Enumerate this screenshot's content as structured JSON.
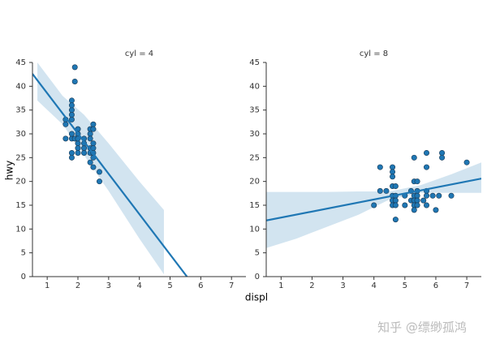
{
  "chart_data": [
    {
      "type": "scatter",
      "title": "cyl = 4",
      "color": "#1f77b4",
      "x": [
        1.6,
        1.6,
        1.6,
        1.8,
        1.8,
        1.8,
        1.8,
        1.8,
        1.8,
        1.8,
        1.8,
        1.8,
        1.9,
        1.9,
        1.9,
        2.0,
        2.0,
        2.0,
        2.0,
        2.0,
        2.0,
        2.2,
        2.2,
        2.2,
        2.2,
        2.4,
        2.4,
        2.4,
        2.4,
        2.4,
        2.4,
        2.5,
        2.5,
        2.5,
        2.5,
        2.5,
        2.5,
        2.5,
        2.7,
        2.7
      ],
      "y": [
        33,
        32,
        29,
        37,
        35,
        36,
        34,
        33,
        29,
        26,
        25,
        30,
        44,
        41,
        29,
        31,
        30,
        28,
        27,
        26,
        29,
        27,
        26,
        29,
        28,
        27,
        31,
        30,
        29,
        26,
        24,
        32,
        31,
        28,
        27,
        26,
        25,
        23,
        22,
        20
      ],
      "fit": {
        "x": [
          0.52,
          5.55
        ],
        "y": [
          42.6,
          0
        ]
      },
      "band": {
        "x": [
          0.68,
          1.5,
          2.2,
          3,
          4,
          4.8
        ],
        "lower": [
          37,
          32,
          25.5,
          18,
          8,
          0.5
        ],
        "upper": [
          45,
          38,
          34,
          28,
          20,
          14
        ]
      },
      "xlim": [
        0.52,
        7.47
      ],
      "ylim": [
        0,
        45
      ],
      "xticks": [
        1,
        2,
        3,
        4,
        5,
        6,
        7
      ],
      "yticks": [
        0,
        5,
        10,
        15,
        20,
        25,
        30,
        35,
        40,
        45
      ]
    },
    {
      "type": "scatter",
      "title": "cyl = 8",
      "color": "#1f77b4",
      "x": [
        4.0,
        4.2,
        4.2,
        4.4,
        4.6,
        4.6,
        4.6,
        4.6,
        4.6,
        4.6,
        4.6,
        4.7,
        4.7,
        4.7,
        4.7,
        4.7,
        5.0,
        5.0,
        5.2,
        5.2,
        5.3,
        5.3,
        5.3,
        5.3,
        5.3,
        5.3,
        5.4,
        5.4,
        5.4,
        5.4,
        5.4,
        5.6,
        5.7,
        5.7,
        5.7,
        5.7,
        5.7,
        5.9,
        6.0,
        6.1,
        6.2,
        6.2,
        6.5,
        7.0
      ],
      "y": [
        15,
        18,
        23,
        18,
        23,
        22,
        21,
        19,
        17,
        16,
        15,
        19,
        17,
        16,
        15,
        12,
        17,
        15,
        18,
        16,
        25,
        20,
        17,
        16,
        15,
        14,
        20,
        18,
        17,
        16,
        15,
        16,
        26,
        23,
        18,
        17,
        15,
        17,
        14,
        17,
        26,
        25,
        17,
        24
      ],
      "fit": {
        "x": [
          0.52,
          7.47
        ],
        "y": [
          11.8,
          20.6
        ]
      },
      "band": {
        "x": [
          0.52,
          1.5,
          2.5,
          3.5,
          4.5,
          5.5,
          6.5,
          7.47
        ],
        "lower": [
          6,
          8,
          10.5,
          13,
          16.2,
          17.6,
          17.6,
          17.6
        ],
        "upper": [
          17.8,
          17.8,
          17.8,
          17.9,
          17.9,
          19.2,
          21.5,
          24
        ]
      },
      "xlim": [
        0.52,
        7.47
      ],
      "ylim": [
        0,
        45
      ],
      "xticks": [
        1,
        2,
        3,
        4,
        5,
        6,
        7
      ],
      "yticks": [
        0,
        5,
        10,
        15,
        20,
        25,
        30,
        35,
        40,
        45
      ]
    }
  ],
  "xlabel": "displ",
  "ylabel": "hwy",
  "watermark": "知乎 @缥缈孤鸿"
}
